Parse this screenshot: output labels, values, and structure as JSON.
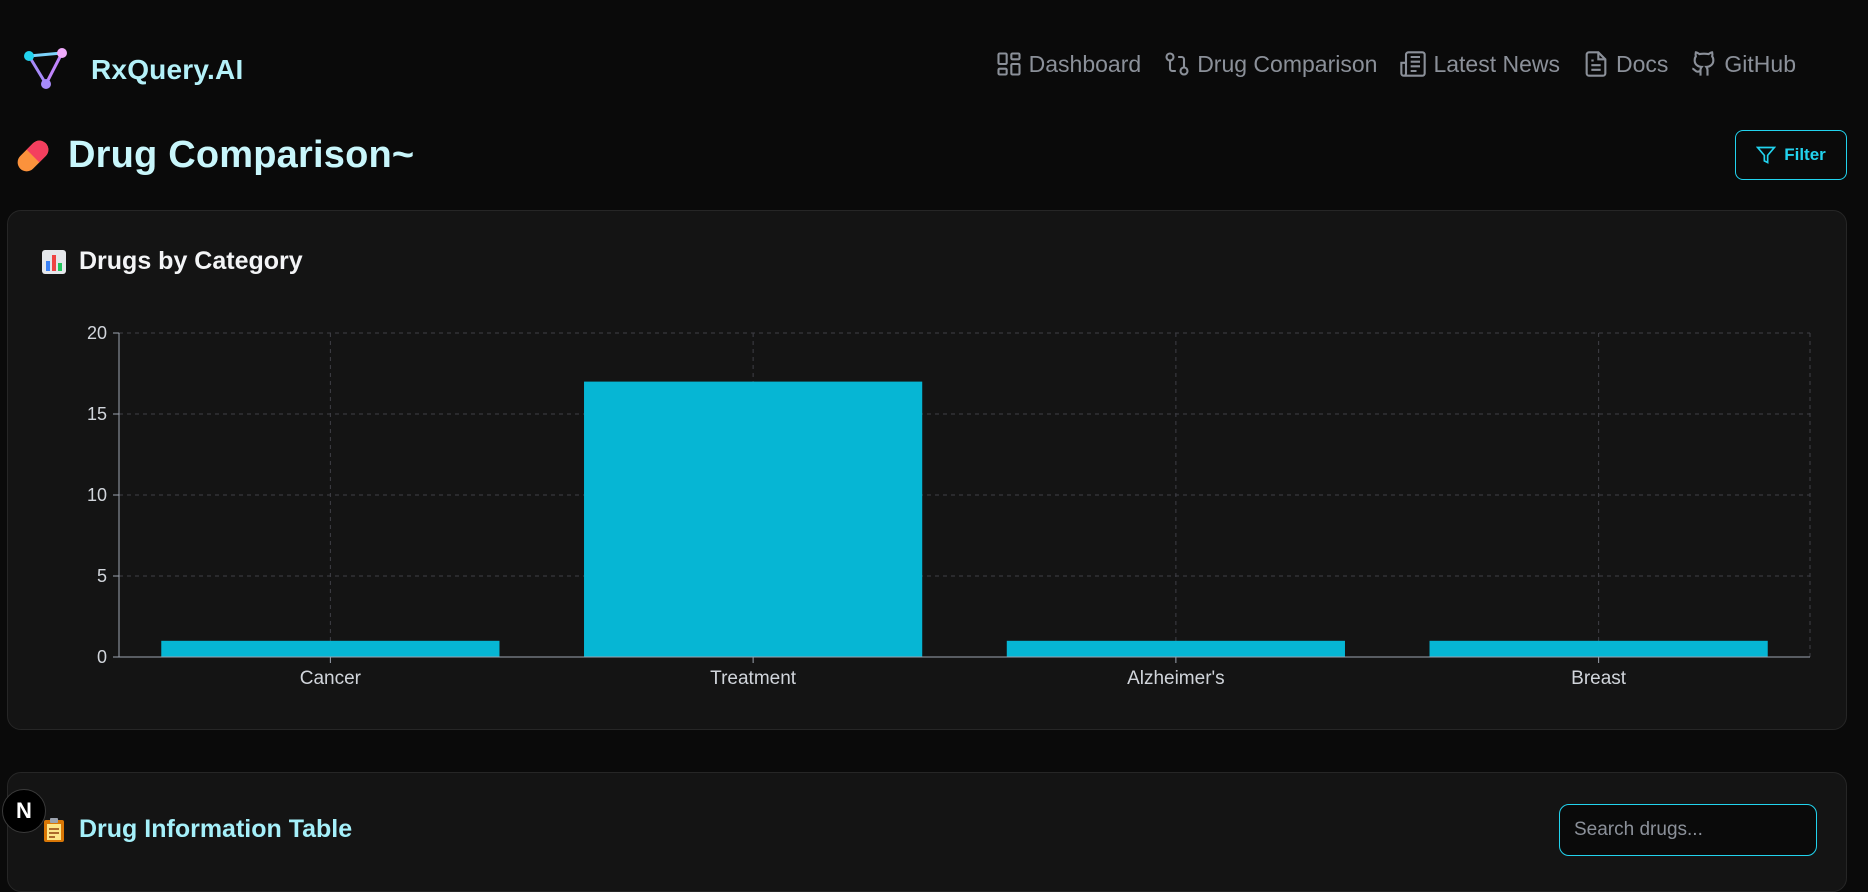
{
  "brand": {
    "name": "RxQuery.AI"
  },
  "nav": [
    {
      "label": "Dashboard",
      "icon": "dashboard-icon"
    },
    {
      "label": "Drug Comparison",
      "icon": "git-compare-icon"
    },
    {
      "label": "Latest News",
      "icon": "newspaper-icon"
    },
    {
      "label": "Docs",
      "icon": "document-icon"
    },
    {
      "label": "GitHub",
      "icon": "github-icon"
    }
  ],
  "page": {
    "title": "Drug Comparison~",
    "filter_label": "Filter"
  },
  "chart_card": {
    "title": "Drugs by Category"
  },
  "chart_data": {
    "type": "bar",
    "categories": [
      "Cancer",
      "Treatment",
      "Alzheimer's",
      "Breast"
    ],
    "values": [
      1,
      17,
      1,
      1
    ],
    "ylim": [
      0,
      20
    ],
    "yticks": [
      0,
      5,
      10,
      15,
      20
    ],
    "grid": true,
    "bar_color": "#06b6d4"
  },
  "table_card": {
    "title": "Drug Information Table",
    "search_placeholder": "Search drugs..."
  },
  "badge": {
    "label": "N"
  },
  "colors": {
    "accent": "#22d3ee",
    "background": "#0a0a0a",
    "card": "#141414"
  }
}
